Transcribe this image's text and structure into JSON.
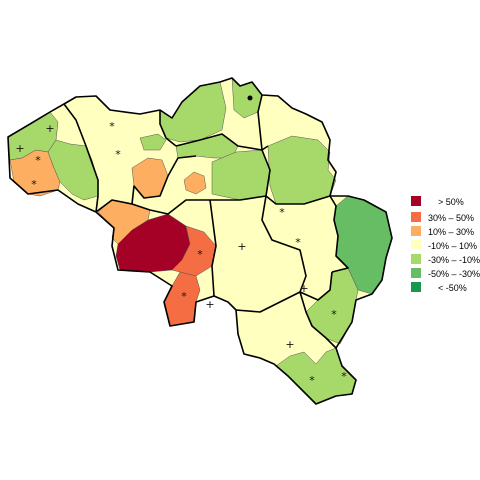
{
  "colors": {
    "gt50": "#a50026",
    "30to50": "#f46d43",
    "10to30": "#fdae61",
    "m10to10": "#ffffbf",
    "m30tom10": "#a6d96a",
    "m50tom30": "#66bd63",
    "lt_m50": "#1a9850"
  },
  "legend": {
    "items": [
      {
        "label": ">  50%",
        "color": "#a50026"
      },
      {
        "label": "30%  –   50%",
        "color": "#f46d43"
      },
      {
        "label": "10%  –   30%",
        "color": "#fdae61"
      },
      {
        "label": "-10%  –   10%",
        "color": "#ffffbf"
      },
      {
        "label": "-30%  –  -10%",
        "color": "#a6d96a"
      },
      {
        "label": "-50%  –  -30%",
        "color": "#66bd63"
      },
      {
        "label": "< -50%",
        "color": "#1a9850"
      }
    ]
  },
  "markers": {
    "plus": "+",
    "star": "*"
  }
}
